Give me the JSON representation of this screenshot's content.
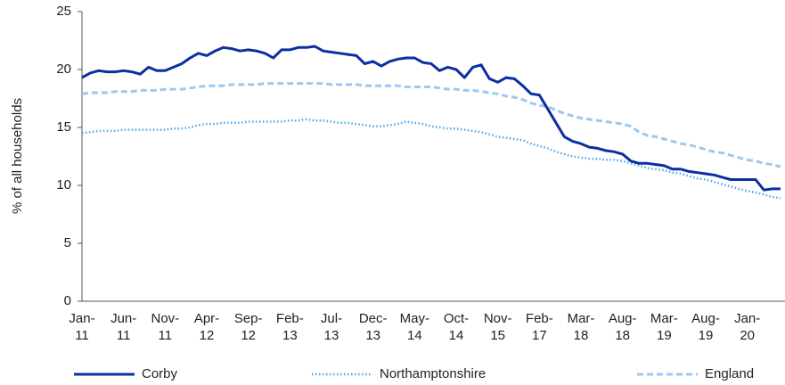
{
  "chart_data": {
    "type": "line",
    "ylabel": "% of all households",
    "categories": [
      "Jan-11",
      null,
      null,
      null,
      null,
      "Jun-11",
      null,
      null,
      null,
      null,
      "Nov-11",
      null,
      null,
      null,
      null,
      "Apr-12",
      null,
      null,
      null,
      null,
      "Sep-12",
      null,
      null,
      null,
      null,
      "Feb-13",
      null,
      null,
      null,
      null,
      "Jul-13",
      null,
      null,
      null,
      null,
      "Dec-13",
      null,
      null,
      null,
      null,
      "May-14",
      null,
      null,
      null,
      null,
      "Oct-14",
      null,
      null,
      null,
      null,
      "Nov-15",
      null,
      null,
      null,
      null,
      "Feb-17",
      null,
      null,
      null,
      null,
      "Mar-18",
      null,
      null,
      null,
      null,
      "Aug-18",
      null,
      null,
      null,
      null,
      "Mar-19",
      null,
      null,
      null,
      null,
      "Aug-19",
      null,
      null,
      null,
      null,
      "Jan-20",
      null,
      null,
      null,
      null
    ],
    "series": [
      {
        "name": "Corby",
        "color": "#0b2fa0",
        "style": "solid",
        "values": [
          19.3,
          19.7,
          19.9,
          19.8,
          19.8,
          19.9,
          19.8,
          19.6,
          20.2,
          19.9,
          19.9,
          20.2,
          20.5,
          21.0,
          21.4,
          21.2,
          21.6,
          21.9,
          21.8,
          21.6,
          21.7,
          21.6,
          21.4,
          21.0,
          21.7,
          21.7,
          21.9,
          21.9,
          22.0,
          21.6,
          21.5,
          21.4,
          21.3,
          21.2,
          20.5,
          20.7,
          20.3,
          20.7,
          20.9,
          21.0,
          21.0,
          20.6,
          20.5,
          19.9,
          20.2,
          20.0,
          19.3,
          20.2,
          20.4,
          19.2,
          18.9,
          19.3,
          19.2,
          18.6,
          17.9,
          17.8,
          16.6,
          15.4,
          14.2,
          13.8,
          13.6,
          13.3,
          13.2,
          13.0,
          12.9,
          12.7,
          12.1,
          11.9,
          11.9,
          11.8,
          11.7,
          11.4,
          11.4,
          11.2,
          11.1,
          11.0,
          10.9,
          10.7,
          10.5,
          10.5,
          10.5,
          10.5,
          9.6,
          9.7,
          9.7
        ]
      },
      {
        "name": "Northamptonshire",
        "color": "#4aa8ec",
        "style": "dotted",
        "values": [
          14.5,
          14.6,
          14.7,
          14.7,
          14.7,
          14.8,
          14.8,
          14.8,
          14.8,
          14.8,
          14.8,
          14.9,
          14.9,
          15.0,
          15.2,
          15.3,
          15.3,
          15.4,
          15.4,
          15.4,
          15.5,
          15.5,
          15.5,
          15.5,
          15.5,
          15.6,
          15.6,
          15.7,
          15.6,
          15.6,
          15.5,
          15.4,
          15.4,
          15.3,
          15.2,
          15.1,
          15.1,
          15.2,
          15.3,
          15.5,
          15.4,
          15.3,
          15.1,
          15.0,
          14.9,
          14.9,
          14.8,
          14.7,
          14.6,
          14.4,
          14.2,
          14.1,
          14.0,
          13.9,
          13.6,
          13.4,
          13.2,
          12.9,
          12.7,
          12.5,
          12.4,
          12.3,
          12.3,
          12.2,
          12.2,
          12.1,
          11.9,
          11.7,
          11.5,
          11.4,
          11.3,
          11.1,
          11.0,
          10.8,
          10.6,
          10.5,
          10.3,
          10.1,
          9.9,
          9.7,
          9.5,
          9.4,
          9.2,
          9.0,
          8.9
        ]
      },
      {
        "name": "England",
        "color": "#9dc8f0",
        "style": "dashed",
        "values": [
          17.9,
          18.0,
          18.0,
          18.0,
          18.1,
          18.1,
          18.1,
          18.2,
          18.2,
          18.2,
          18.3,
          18.3,
          18.3,
          18.4,
          18.5,
          18.6,
          18.6,
          18.6,
          18.7,
          18.7,
          18.7,
          18.7,
          18.8,
          18.8,
          18.8,
          18.8,
          18.8,
          18.8,
          18.8,
          18.8,
          18.7,
          18.7,
          18.7,
          18.7,
          18.6,
          18.6,
          18.6,
          18.6,
          18.6,
          18.5,
          18.5,
          18.5,
          18.5,
          18.4,
          18.3,
          18.3,
          18.2,
          18.2,
          18.1,
          18.0,
          17.9,
          17.7,
          17.6,
          17.4,
          17.1,
          16.9,
          16.8,
          16.5,
          16.2,
          16.0,
          15.8,
          15.7,
          15.6,
          15.5,
          15.4,
          15.3,
          15.1,
          14.6,
          14.3,
          14.2,
          14.0,
          13.8,
          13.6,
          13.5,
          13.3,
          13.1,
          12.9,
          12.8,
          12.6,
          12.4,
          12.2,
          12.1,
          11.9,
          11.8,
          11.6
        ]
      }
    ],
    "ylim": [
      0,
      25
    ],
    "yticks": [
      0,
      5,
      10,
      15,
      20,
      25
    ],
    "grid": false,
    "legend": "bottom"
  }
}
